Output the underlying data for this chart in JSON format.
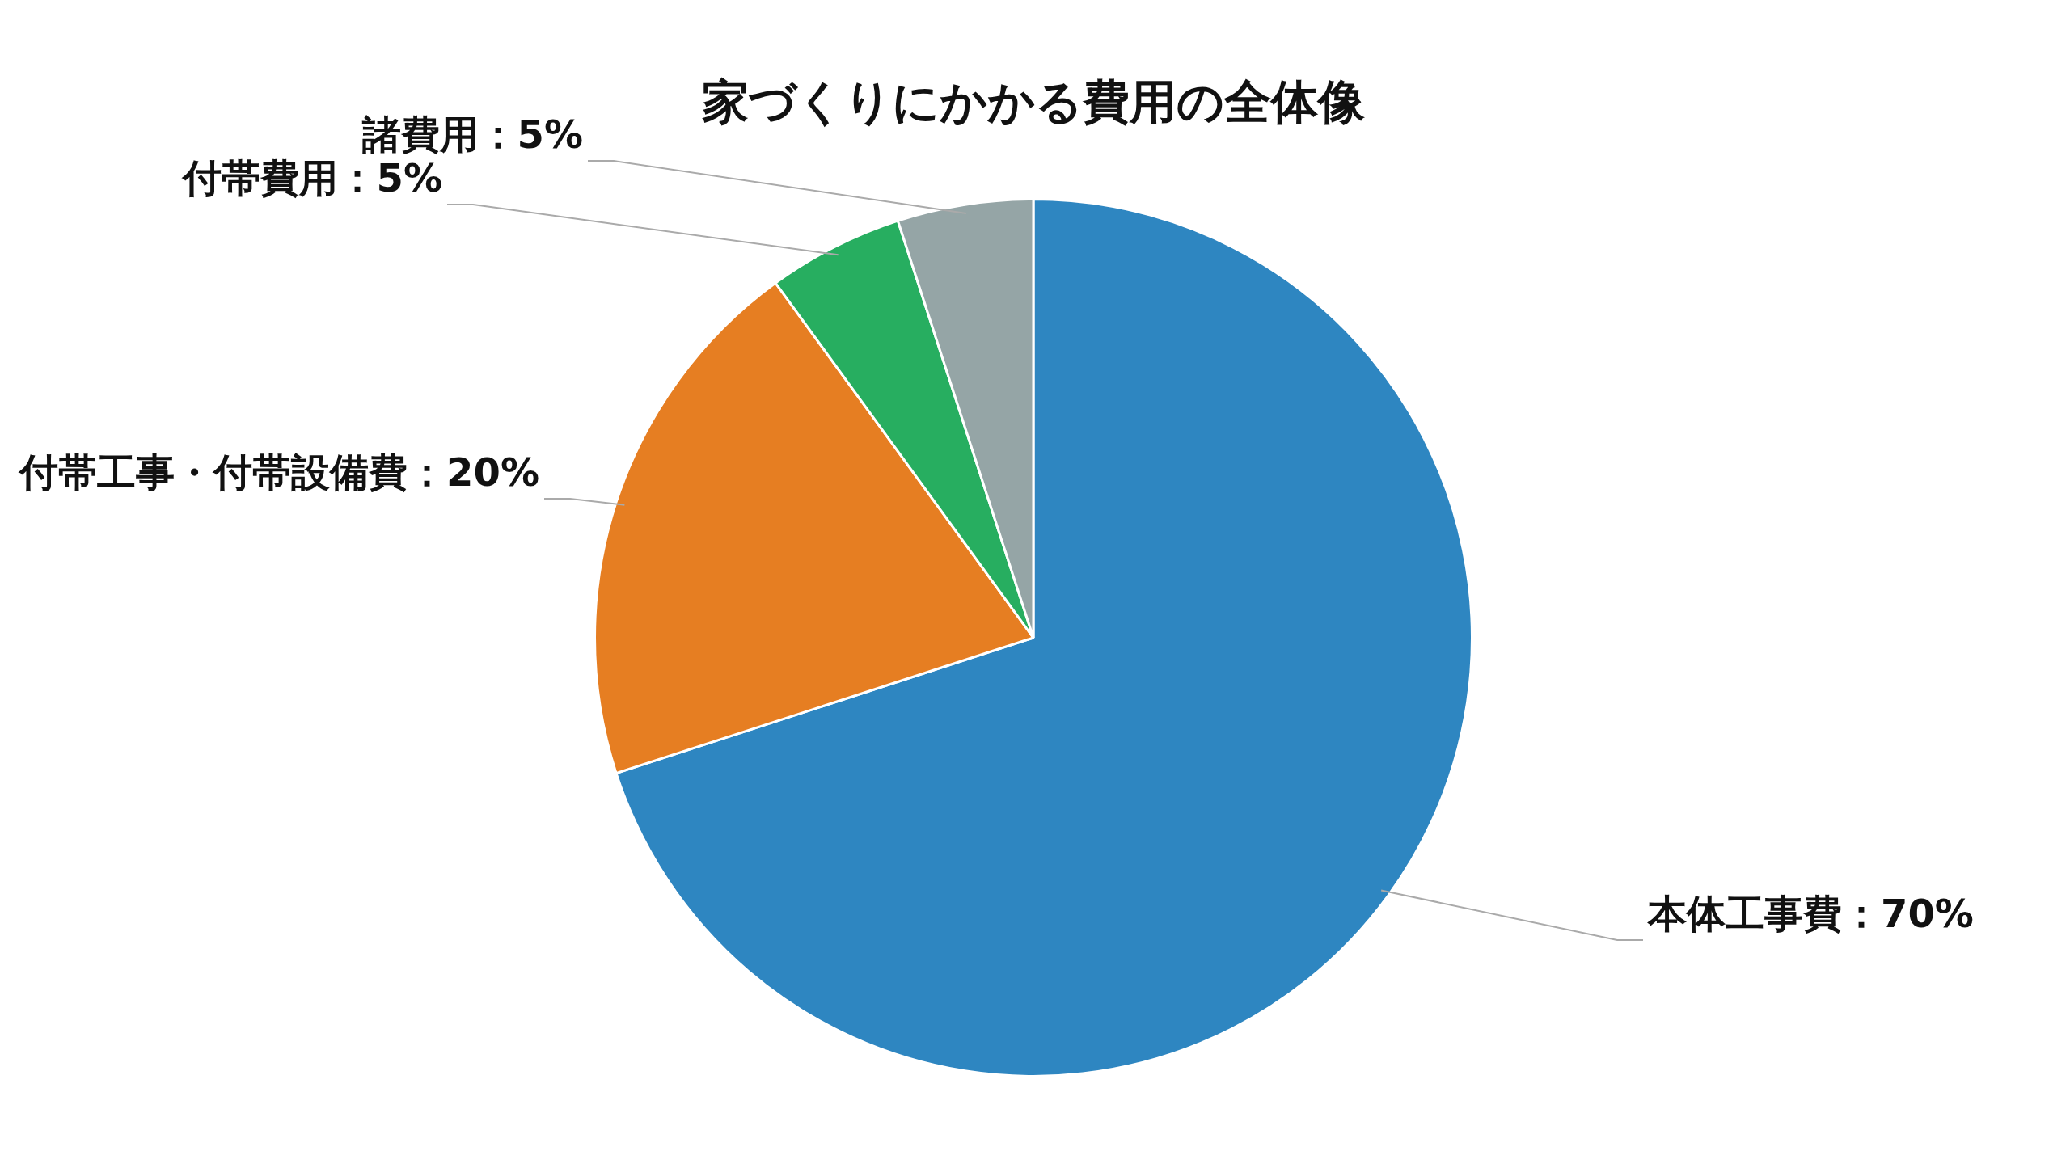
{
  "chart_data": {
    "type": "pie",
    "title": "家づくりにかかる費用の全体像",
    "categories": [
      "本体工事費",
      "付帯工事・付帯設備費",
      "付帯費用",
      "諸費用"
    ],
    "values": [
      70,
      20,
      5,
      5
    ],
    "value_labels": [
      "70%",
      "20%",
      "5%",
      "5%"
    ],
    "colors": [
      "#2e86c1",
      "#e67e22",
      "#27ae60",
      "#95a5a6"
    ],
    "legend": false
  }
}
